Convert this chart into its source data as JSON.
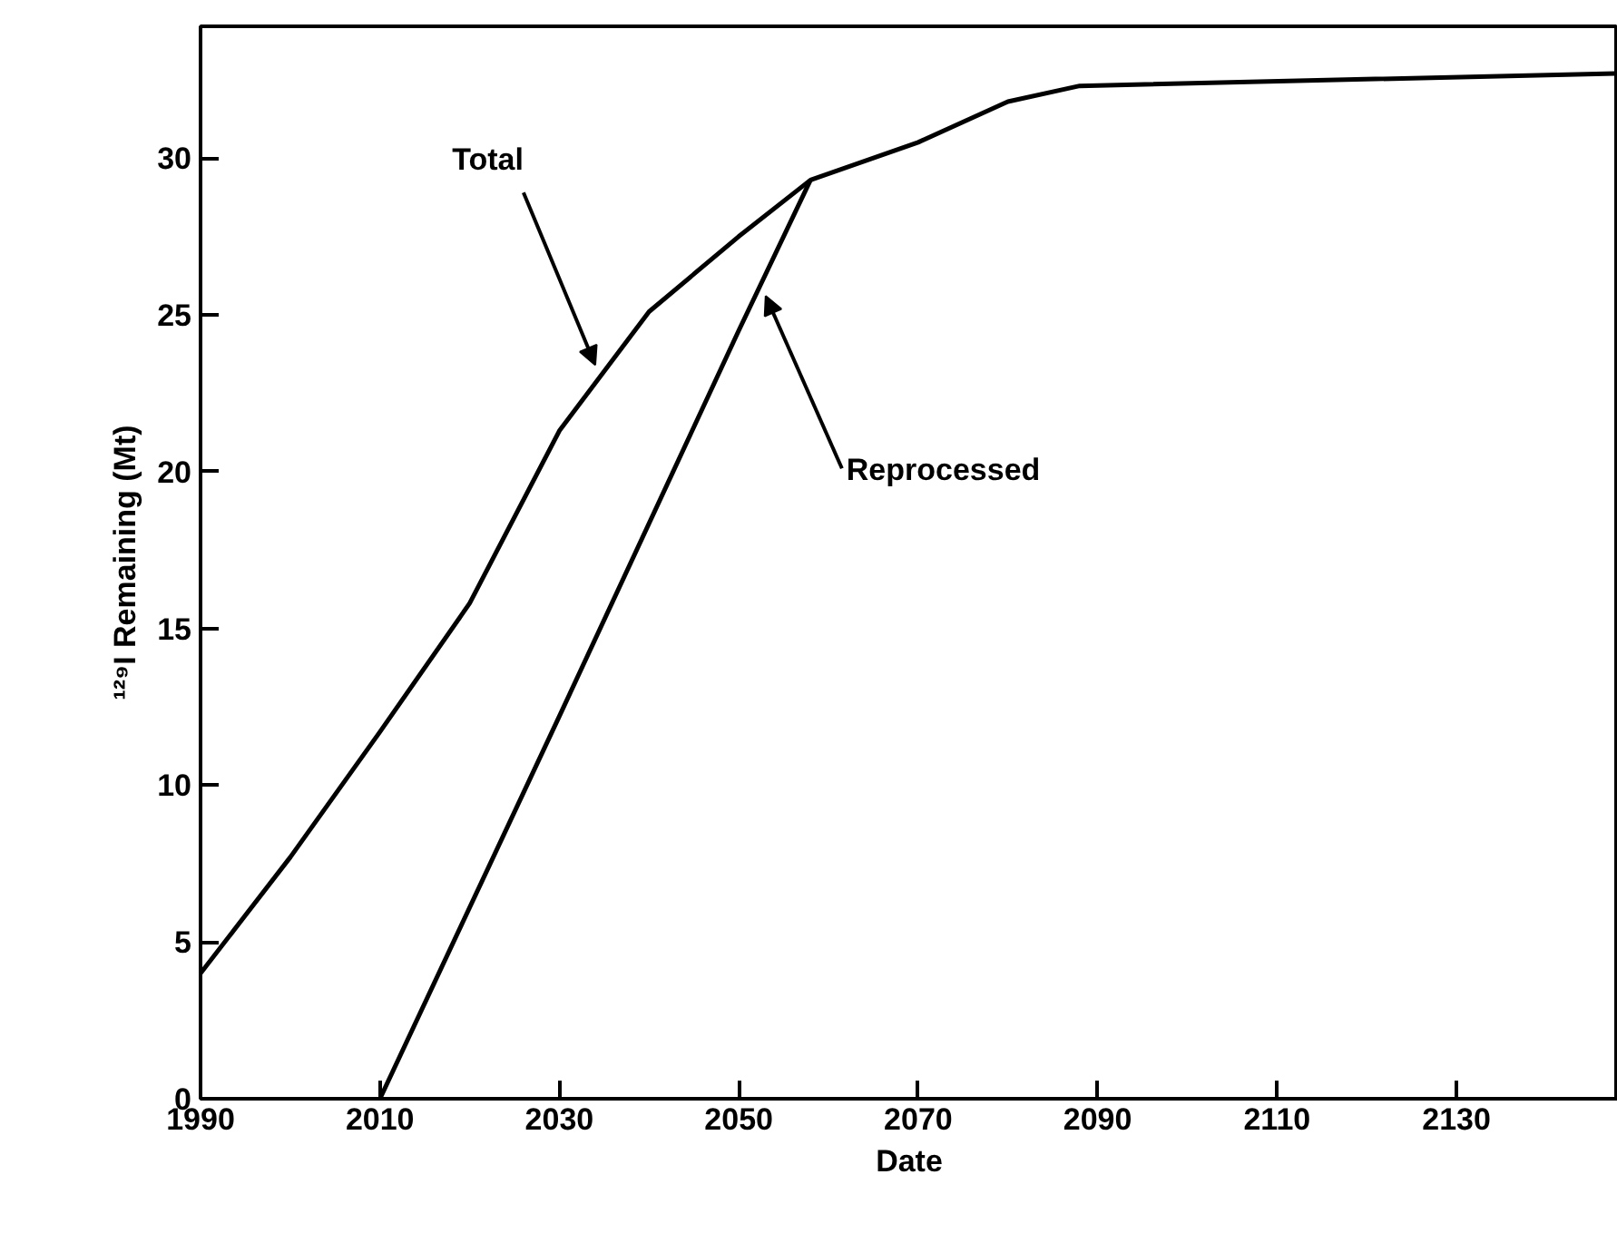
{
  "chart_data": {
    "type": "line",
    "xlabel": "Date",
    "ylabel": "¹²⁹I Remaining (Mt)",
    "xlim": [
      1990,
      2148
    ],
    "ylim": [
      0,
      34.2
    ],
    "xticks": [
      1990,
      2010,
      2030,
      2050,
      2070,
      2090,
      2110,
      2130
    ],
    "yticks": [
      0,
      5,
      10,
      15,
      20,
      25,
      30
    ],
    "grid": false,
    "marker": "none",
    "line_style": "solid",
    "series": [
      {
        "color": "#000000",
        "x": [
          1990,
          2000,
          2010,
          2020,
          2030,
          2040,
          2050,
          2058,
          2070,
          2080,
          2088,
          2148
        ],
        "values": [
          4,
          7.7,
          11.7,
          15.8,
          21.3,
          25.1,
          27.5,
          29.3,
          30.5,
          31.8,
          32.3,
          32.7
        ]
      },
      {
        "color": "#000000",
        "x": [
          2010,
          2030,
          2050,
          2058
        ],
        "values": [
          0,
          12.2,
          24.5,
          29.3
        ]
      }
    ],
    "annotations": [
      {
        "text": "Total",
        "x": 2034,
        "y": 23.4
      },
      {
        "text": "Reprocessed",
        "x": 2053,
        "y": 25.6
      }
    ]
  }
}
